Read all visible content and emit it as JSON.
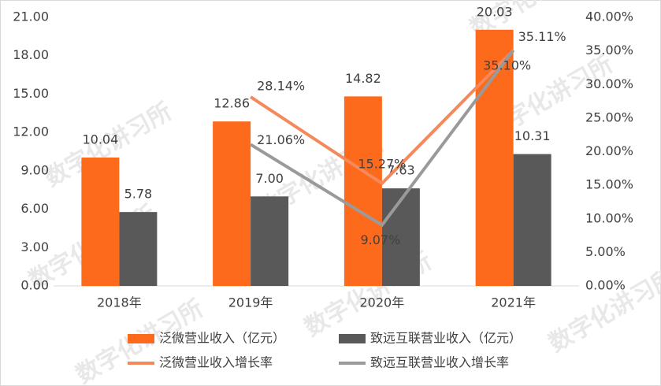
{
  "chart_data": {
    "type": "bar_line",
    "categories": [
      "2018年",
      "2019年",
      "2020年",
      "2021年"
    ],
    "series": [
      {
        "name": "泛微营业收入（亿元）",
        "type": "bar",
        "color": "#fe6a1c",
        "values": [
          10.04,
          12.86,
          14.82,
          20.03
        ],
        "value_labels": [
          "10.04",
          "12.86",
          "14.82",
          "20.03"
        ]
      },
      {
        "name": "致远互联营业收入（亿元）",
        "type": "bar",
        "color": "#595959",
        "values": [
          5.78,
          7.0,
          7.63,
          10.31
        ],
        "value_labels": [
          "5.78",
          "7.00",
          "7.63",
          "10.31"
        ]
      },
      {
        "name": "泛微营业收入增长率",
        "type": "line",
        "axis": "y2",
        "color": "#f4895c",
        "values": [
          null,
          28.14,
          15.27,
          35.11
        ],
        "value_labels": [
          null,
          "28.14%",
          "15.27%",
          "35.11%"
        ]
      },
      {
        "name": "致远互联营业收入增长率",
        "type": "line",
        "axis": "y2",
        "color": "#9a9a9a",
        "values": [
          null,
          21.06,
          9.07,
          35.1
        ],
        "value_labels": [
          null,
          "21.06%",
          "9.07%",
          "35.10%"
        ]
      }
    ],
    "ylim": [
      0,
      21
    ],
    "yticks": [
      {
        "value": 0,
        "label": "0.00"
      },
      {
        "value": 3,
        "label": "3.00"
      },
      {
        "value": 6,
        "label": "6.00"
      },
      {
        "value": 9,
        "label": "9.00"
      },
      {
        "value": 12,
        "label": "12.00"
      },
      {
        "value": 15,
        "label": "15.00"
      },
      {
        "value": 18,
        "label": "18.00"
      },
      {
        "value": 21,
        "label": "21.00"
      }
    ],
    "y2lim": [
      0,
      40
    ],
    "y2ticks": [
      {
        "value": 0,
        "label": "0.00%"
      },
      {
        "value": 5,
        "label": "5.00%"
      },
      {
        "value": 10,
        "label": "10.00%"
      },
      {
        "value": 15,
        "label": "15.00%"
      },
      {
        "value": 20,
        "label": "20.00%"
      },
      {
        "value": 25,
        "label": "25.00%"
      },
      {
        "value": 30,
        "label": "30.00%"
      },
      {
        "value": 35,
        "label": "35.00%"
      },
      {
        "value": 40,
        "label": "40.00%"
      }
    ],
    "watermark": "数字化讲习所"
  }
}
